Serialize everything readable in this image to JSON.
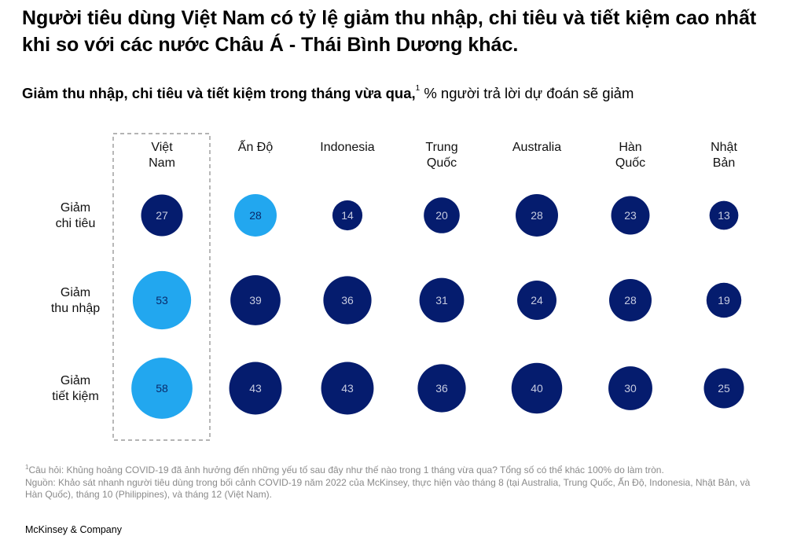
{
  "title": "Người tiêu dùng Việt Nam có tỷ lệ giảm thu nhập, chi tiêu và tiết kiệm cao nhất khi so với các nước Châu Á - Thái Bình Dương khác.",
  "subtitle": {
    "bold": "Giảm thu nhập, chi tiêu và tiết kiệm trong tháng vừa qua,",
    "sup": "1",
    "normal": " % người trả lời dự đoán sẽ giảm"
  },
  "chart_data": {
    "type": "bubble",
    "columns": [
      [
        "Việt",
        "Nam"
      ],
      [
        "Ấn Độ"
      ],
      [
        "Indonesia"
      ],
      [
        "Trung",
        "Quốc"
      ],
      [
        "Australia"
      ],
      [
        "Hàn",
        "Quốc"
      ],
      [
        "Nhật",
        "Bản"
      ]
    ],
    "rows": [
      [
        "Giảm",
        "chi tiêu"
      ],
      [
        "Giảm",
        "thu nhập"
      ],
      [
        "Giảm",
        "tiết kiệm"
      ]
    ],
    "values": [
      [
        27,
        28,
        14,
        20,
        28,
        23,
        13
      ],
      [
        53,
        39,
        36,
        31,
        24,
        28,
        19
      ],
      [
        58,
        43,
        43,
        36,
        40,
        30,
        25
      ]
    ],
    "highlight": [
      [
        false,
        true,
        false,
        false,
        false,
        false,
        false
      ],
      [
        true,
        false,
        false,
        false,
        false,
        false,
        false
      ],
      [
        true,
        false,
        false,
        false,
        false,
        false,
        false
      ]
    ],
    "highlighted_column": "Việt Nam",
    "colors": {
      "default": "#051c6e",
      "highlight": "#22a7ef",
      "label_dark": "#c6cbe0",
      "label_light": "#0a2a6a",
      "box": "#888888"
    }
  },
  "footnote": {
    "sup": "1",
    "lines": [
      "Câu hỏi: Khủng hoảng COVID-19 đã ảnh hưởng đến những yếu tố sau đây như thế nào trong 1 tháng vừa qua? Tổng số có thể khác 100% do làm tròn.",
      "Nguồn: Khảo sát nhanh người tiêu dùng trong bối cảnh COVID-19 năm 2022 của McKinsey, thực hiện vào tháng 8 (tại Australia, Trung Quốc, Ấn Độ, Indonesia, Nhật Bản, và Hàn Quốc), tháng 10 (Philippines), và tháng 12 (Việt Nam)."
    ]
  },
  "brand": "McKinsey & Company"
}
